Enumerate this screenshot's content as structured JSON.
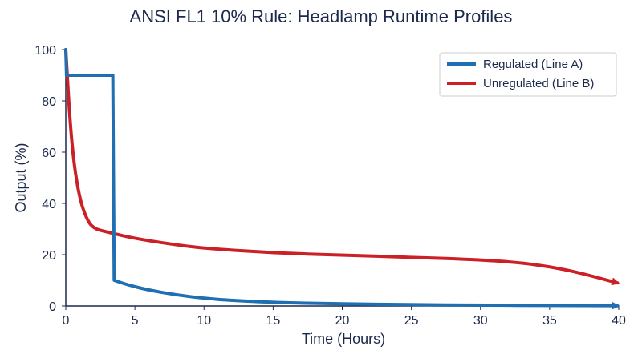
{
  "chart_data": {
    "type": "line",
    "title": "ANSI FL1 10% Rule: Headlamp Runtime Profiles",
    "xlabel": "Time (Hours)",
    "ylabel": "Output (%)",
    "xlim": [
      0,
      40
    ],
    "ylim": [
      0,
      100
    ],
    "xticks": [
      0,
      5,
      10,
      15,
      20,
      25,
      30,
      35,
      40
    ],
    "yticks": [
      0,
      20,
      40,
      60,
      80,
      100
    ],
    "grid": false,
    "legend_position": "top-right",
    "series": [
      {
        "name": "Regulated (Line A)",
        "color": "#1f6fb2",
        "x": [
          0,
          0.05,
          3.4,
          3.5,
          4.5,
          6,
          8,
          10,
          12,
          15,
          20,
          25,
          30,
          35,
          39.9
        ],
        "y": [
          100,
          90,
          90,
          10,
          8.2,
          6.2,
          4.3,
          3.0,
          2.2,
          1.4,
          0.8,
          0.5,
          0.3,
          0.2,
          0.1
        ]
      },
      {
        "name": "Unregulated (Line B)",
        "color": "#cc2027",
        "x": [
          0,
          0.3,
          0.6,
          1.0,
          1.5,
          2.0,
          3,
          5,
          8,
          10,
          15,
          20,
          25,
          30,
          33,
          35,
          37,
          39.9
        ],
        "y": [
          100,
          72,
          55,
          42,
          34,
          30.2,
          28.8,
          26.3,
          23.8,
          22.5,
          20.7,
          19.8,
          19.0,
          18.0,
          16.8,
          15.3,
          13.2,
          9
        ]
      }
    ]
  }
}
